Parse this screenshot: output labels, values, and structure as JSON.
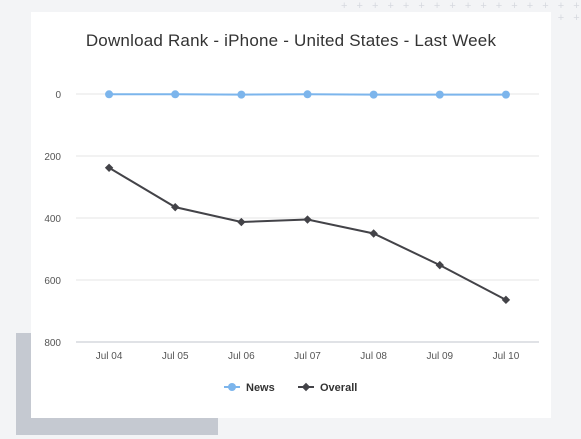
{
  "chart_data": {
    "type": "line",
    "title": "Download Rank - iPhone - United States - Last Week",
    "xlabel": "",
    "ylabel": "",
    "categories": [
      "Jul 04",
      "Jul 05",
      "Jul 06",
      "Jul 07",
      "Jul 08",
      "Jul 09",
      "Jul 10"
    ],
    "ylim": [
      0,
      800
    ],
    "y_reversed": true,
    "yticks": [
      0,
      200,
      400,
      600,
      800
    ],
    "grid": true,
    "legend_position": "bottom",
    "series": [
      {
        "name": "News",
        "color": "#7cb5ec",
        "marker": "circle",
        "values": [
          1,
          1,
          2,
          1,
          2,
          2,
          2
        ]
      },
      {
        "name": "Overall",
        "color": "#434348",
        "marker": "diamond",
        "values": [
          238,
          365,
          413,
          405,
          450,
          552,
          664
        ]
      }
    ]
  }
}
